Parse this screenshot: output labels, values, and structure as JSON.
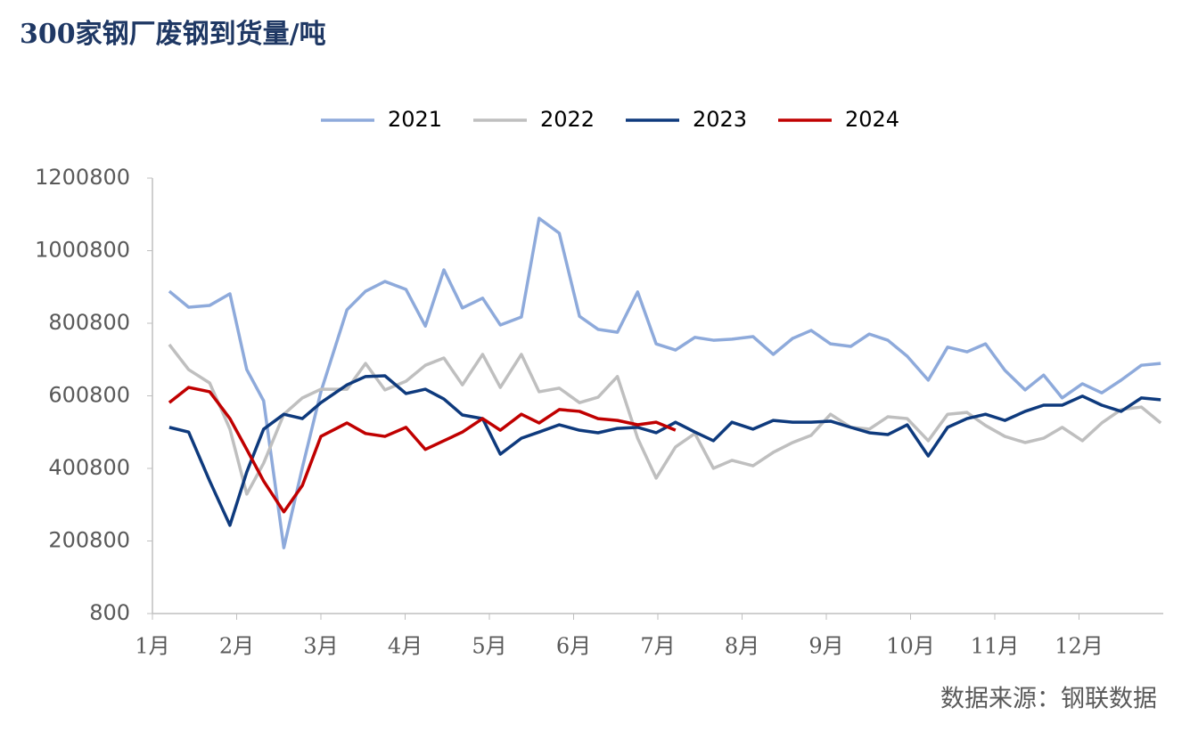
{
  "chart_data": {
    "type": "line",
    "title": "300家钢厂废钢到货量/吨",
    "source": "数据来源：钢联数据",
    "x": [
      1.2,
      1.43,
      1.68,
      1.92,
      2.12,
      2.32,
      2.56,
      2.78,
      3,
      3.31,
      3.53,
      3.76,
      4.01,
      4.24,
      4.46,
      4.68,
      4.92,
      5.13,
      5.38,
      5.59,
      5.83,
      6.07,
      6.29,
      6.52,
      6.76,
      6.98,
      7.21,
      7.44,
      7.66,
      7.88,
      8.13,
      8.37,
      8.6,
      8.82,
      9.05,
      9.29,
      9.51,
      9.73,
      9.96,
      10.21,
      10.44,
      10.67,
      10.89,
      11.12,
      11.36,
      11.58,
      11.8,
      12.04,
      12.27,
      12.5,
      12.74,
      12.97
    ],
    "xlim": [
      1,
      13
    ],
    "xticks": [
      {
        "value": 1,
        "label": "1月"
      },
      {
        "value": 2,
        "label": "2月"
      },
      {
        "value": 3,
        "label": "3月"
      },
      {
        "value": 4,
        "label": "4月"
      },
      {
        "value": 5,
        "label": "5月"
      },
      {
        "value": 6,
        "label": "6月"
      },
      {
        "value": 7,
        "label": "7月"
      },
      {
        "value": 8,
        "label": "8月"
      },
      {
        "value": 9,
        "label": "9月"
      },
      {
        "value": 10,
        "label": "10月"
      },
      {
        "value": 11,
        "label": "11月"
      },
      {
        "value": 12,
        "label": "12月"
      }
    ],
    "ylim": [
      800,
      1200800
    ],
    "yticks": [
      800,
      200800,
      400800,
      600800,
      800800,
      1000800,
      1200800
    ],
    "grid": false,
    "legend": "top",
    "series": [
      {
        "name": "2021",
        "color": "#8eaadb",
        "values": [
          889000,
          845000,
          850000,
          882000,
          673000,
          587000,
          182000,
          403000,
          612000,
          838000,
          889000,
          916000,
          894000,
          793000,
          948000,
          843000,
          870000,
          796000,
          818000,
          1090000,
          1049000,
          820000,
          784000,
          776000,
          887000,
          744000,
          727000,
          762000,
          754000,
          757000,
          764000,
          715000,
          759000,
          781000,
          744000,
          737000,
          771000,
          754000,
          710000,
          644000,
          735000,
          722000,
          744000,
          671000,
          617000,
          658000,
          595000,
          634000,
          609000,
          644000,
          685000,
          690000
        ]
      },
      {
        "name": "2022",
        "color": "#bfbfbf",
        "values": [
          742000,
          673000,
          636000,
          509000,
          330000,
          415000,
          550000,
          595000,
          619000,
          619000,
          690000,
          617000,
          641000,
          685000,
          705000,
          631000,
          715000,
          624000,
          715000,
          612000,
          622000,
          582000,
          597000,
          654000,
          484000,
          374000,
          460000,
          497000,
          401000,
          423000,
          408000,
          445000,
          472000,
          492000,
          550000,
          514000,
          509000,
          543000,
          538000,
          477000,
          550000,
          555000,
          519000,
          489000,
          472000,
          484000,
          514000,
          477000,
          526000,
          563000,
          570000,
          526000
        ]
      },
      {
        "name": "2023",
        "color": "#0e3a7d",
        "values": [
          514000,
          501000,
          366000,
          244000,
          391000,
          509000,
          550000,
          538000,
          582000,
          631000,
          654000,
          656000,
          607000,
          619000,
          592000,
          548000,
          538000,
          440000,
          484000,
          501000,
          521000,
          506000,
          499000,
          511000,
          514000,
          499000,
          528000,
          501000,
          477000,
          528000,
          509000,
          533000,
          528000,
          528000,
          531000,
          514000,
          499000,
          494000,
          521000,
          435000,
          514000,
          538000,
          550000,
          533000,
          558000,
          575000,
          575000,
          600000,
          575000,
          558000,
          595000,
          590000
        ]
      },
      {
        "name": "2024",
        "color": "#c00000",
        "values": [
          582000,
          624000,
          612000,
          538000,
          453000,
          366000,
          281000,
          354000,
          489000,
          526000,
          497000,
          489000,
          514000,
          453000,
          477000,
          501000,
          538000,
          506000,
          550000,
          526000,
          563000,
          558000,
          538000,
          533000,
          521000,
          528000,
          506000,
          null,
          null,
          null,
          null,
          null,
          null,
          null,
          null,
          null,
          null,
          null,
          null,
          null,
          null,
          null,
          null,
          null,
          null,
          null,
          null,
          null,
          null,
          null,
          null,
          null
        ]
      }
    ]
  }
}
